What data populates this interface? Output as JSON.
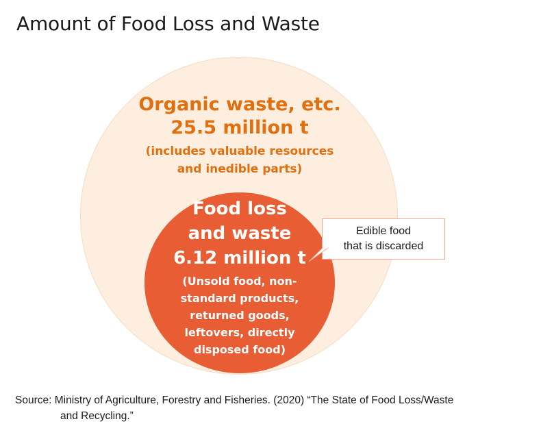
{
  "title": "Amount of Food Loss and Waste",
  "organic": {
    "line1": "Organic waste, etc.",
    "line2": "25.5 million t",
    "note_line1": "(includes valuable resources",
    "note_line2": "and inedible parts)"
  },
  "food_loss": {
    "line1": "Food loss",
    "line2": "and waste",
    "line3": "6.12 million t",
    "note_line1": "(Unsold food, non-",
    "note_line2": "standard products,",
    "note_line3": "returned goods,",
    "note_line4": "leftovers, directly",
    "note_line5": "disposed food)"
  },
  "callout": {
    "line1": "Edible food",
    "line2": "that is discarded"
  },
  "source": {
    "line1": "Source: Ministry of Agriculture, Forestry and Fisheries. (2020) “The State of Food Loss/Waste",
    "line2": "and Recycling.”"
  },
  "colors": {
    "outer_circle": "#fdeedf",
    "inner_circle": "#e85d33",
    "organic_text": "#e0700f",
    "callout_border": "#f0a78e"
  }
}
